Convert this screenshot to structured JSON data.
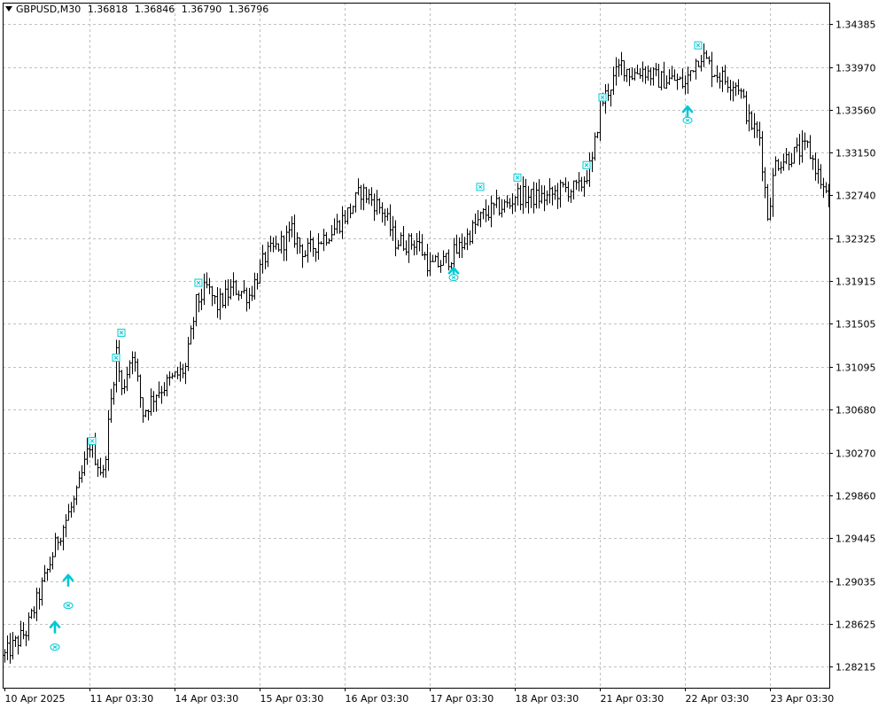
{
  "header": {
    "symbol": "GBPUSD,M30",
    "open": "1.36818",
    "high": "1.36846",
    "low": "1.36790",
    "close": "1.36796"
  },
  "colors": {
    "background": "#ffffff",
    "grid": "#c0c0c0",
    "bars": "#000000",
    "signal": "#00c8d2"
  },
  "chart_data": {
    "type": "ohlc",
    "timeframe": "M30",
    "grid": true,
    "ylim": [
      1.2801,
      1.3459
    ],
    "y_ticks": [
      "1.34385",
      "1.33970",
      "1.33560",
      "1.33150",
      "1.32740",
      "1.32325",
      "1.31915",
      "1.31505",
      "1.31095",
      "1.30680",
      "1.30270",
      "1.29860",
      "1.29445",
      "1.29035",
      "1.28625",
      "1.28215"
    ],
    "x_ticks": [
      "10 Apr 2025",
      "11 Apr 03:30",
      "14 Apr 03:30",
      "15 Apr 03:30",
      "16 Apr 03:30",
      "17 Apr 03:30",
      "18 Apr 03:30",
      "21 Apr 03:30",
      "22 Apr 03:30",
      "23 Apr 03:30"
    ],
    "x_tick_bar_index": [
      0,
      32,
      64,
      96,
      128,
      160,
      192,
      224,
      256,
      288
    ],
    "bar_count": 311,
    "close_anchors": [
      [
        0,
        1.2832
      ],
      [
        8,
        1.2855
      ],
      [
        15,
        1.2905
      ],
      [
        20,
        1.2945
      ],
      [
        27,
        1.2985
      ],
      [
        32,
        1.3035
      ],
      [
        37,
        1.3005
      ],
      [
        42,
        1.3125
      ],
      [
        44,
        1.3085
      ],
      [
        48,
        1.3125
      ],
      [
        52,
        1.3065
      ],
      [
        57,
        1.3085
      ],
      [
        62,
        1.3095
      ],
      [
        68,
        1.3108
      ],
      [
        72,
        1.317
      ],
      [
        76,
        1.3185
      ],
      [
        80,
        1.3168
      ],
      [
        86,
        1.3185
      ],
      [
        92,
        1.3178
      ],
      [
        98,
        1.3215
      ],
      [
        104,
        1.3228
      ],
      [
        108,
        1.3238
      ],
      [
        113,
        1.3218
      ],
      [
        119,
        1.3232
      ],
      [
        124,
        1.3242
      ],
      [
        130,
        1.326
      ],
      [
        134,
        1.3278
      ],
      [
        138,
        1.327
      ],
      [
        142,
        1.326
      ],
      [
        147,
        1.323
      ],
      [
        152,
        1.3228
      ],
      [
        155,
        1.323
      ],
      [
        160,
        1.3205
      ],
      [
        165,
        1.321
      ],
      [
        170,
        1.322
      ],
      [
        175,
        1.3238
      ],
      [
        180,
        1.3255
      ],
      [
        185,
        1.3262
      ],
      [
        190,
        1.3265
      ],
      [
        192,
        1.3275
      ],
      [
        198,
        1.3272
      ],
      [
        204,
        1.3272
      ],
      [
        210,
        1.328
      ],
      [
        216,
        1.328
      ],
      [
        221,
        1.3305
      ],
      [
        224,
        1.336
      ],
      [
        228,
        1.338
      ],
      [
        232,
        1.34
      ],
      [
        236,
        1.339
      ],
      [
        240,
        1.3395
      ],
      [
        246,
        1.3385
      ],
      [
        252,
        1.3385
      ],
      [
        256,
        1.338
      ],
      [
        259,
        1.34
      ],
      [
        262,
        1.341
      ],
      [
        266,
        1.3395
      ],
      [
        271,
        1.3385
      ],
      [
        276,
        1.338
      ],
      [
        280,
        1.3345
      ],
      [
        284,
        1.333
      ],
      [
        287,
        1.3255
      ],
      [
        290,
        1.3305
      ],
      [
        294,
        1.331
      ],
      [
        298,
        1.3315
      ],
      [
        302,
        1.332
      ],
      [
        306,
        1.3295
      ],
      [
        310,
        1.3265
      ]
    ],
    "signals": [
      {
        "type": "up-arrow",
        "bar": 19,
        "price": 1.286
      },
      {
        "type": "up-arrow",
        "bar": 24,
        "price": 1.2905
      },
      {
        "type": "up-arrow",
        "bar": 169,
        "price": 1.32
      },
      {
        "type": "up-arrow",
        "bar": 257,
        "price": 1.3355
      },
      {
        "type": "marker-below",
        "bar": 19,
        "price": 1.284
      },
      {
        "type": "marker-below",
        "bar": 24,
        "price": 1.288
      },
      {
        "type": "marker-below",
        "bar": 169,
        "price": 1.3195
      },
      {
        "type": "marker-below",
        "bar": 257,
        "price": 1.3346
      },
      {
        "type": "marker-above",
        "bar": 33,
        "price": 1.3038
      },
      {
        "type": "marker-above",
        "bar": 42,
        "price": 1.3118
      },
      {
        "type": "marker-above",
        "bar": 44,
        "price": 1.3142
      },
      {
        "type": "marker-above",
        "bar": 73,
        "price": 1.319
      },
      {
        "type": "marker-above",
        "bar": 179,
        "price": 1.3282
      },
      {
        "type": "marker-above",
        "bar": 193,
        "price": 1.3291
      },
      {
        "type": "marker-above",
        "bar": 219,
        "price": 1.3303
      },
      {
        "type": "marker-above",
        "bar": 225,
        "price": 1.3368
      },
      {
        "type": "marker-above",
        "bar": 261,
        "price": 1.3418
      }
    ]
  }
}
